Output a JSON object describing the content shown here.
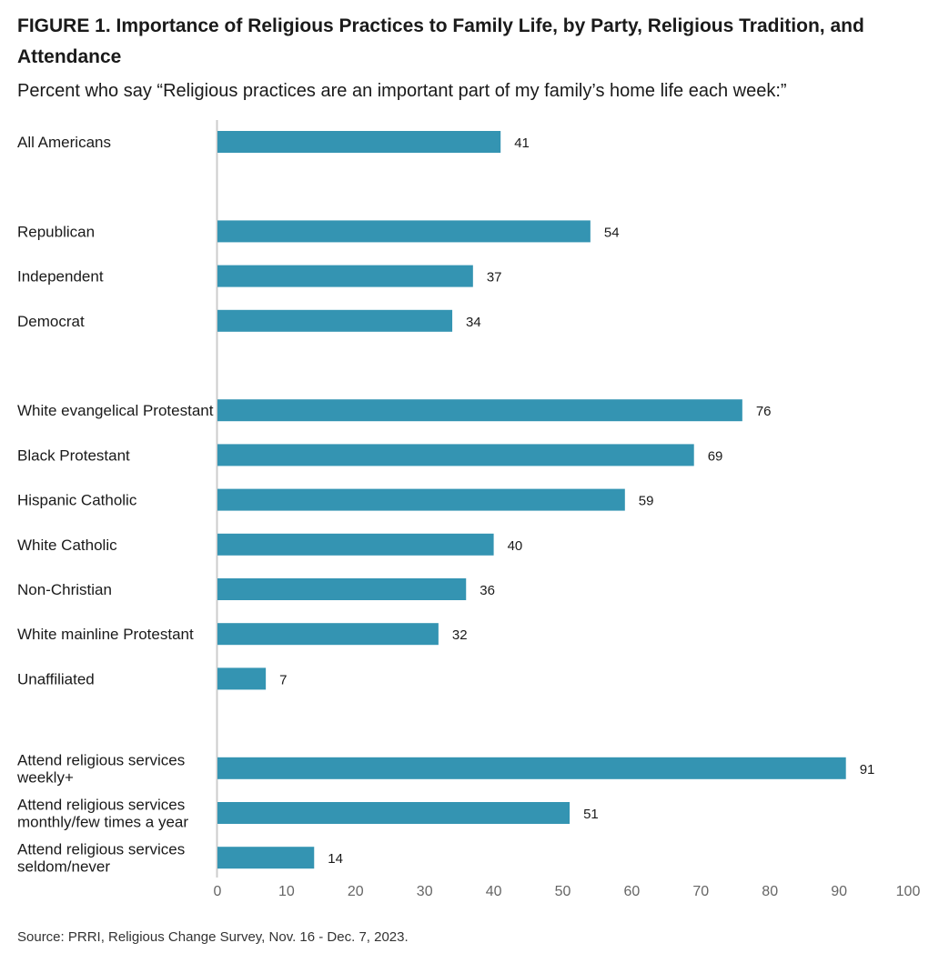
{
  "title": "FIGURE 1.  Importance of Religious Practices to Family Life, by Party, Religious Tradition, and Attendance",
  "subtitle": "Percent who say “Religious practices are an important part of my family’s home life each week:”",
  "source": "Source: PRRI, Religious Change Survey, Nov. 16 - Dec. 7, 2023.",
  "colors": {
    "bar": "#3494b2",
    "axis": "#cccccc",
    "tick_label": "#666666"
  },
  "chart_data": {
    "type": "bar",
    "orientation": "horizontal",
    "xlim": [
      0,
      100
    ],
    "xticks": [
      0,
      10,
      20,
      30,
      40,
      50,
      60,
      70,
      80,
      90,
      100
    ],
    "grid": false,
    "groups": [
      {
        "categories": [
          "All Americans"
        ],
        "values": [
          41
        ]
      },
      {
        "categories": [
          "Republican",
          "Independent",
          "Democrat"
        ],
        "values": [
          54,
          37,
          34
        ]
      },
      {
        "categories": [
          "White evangelical Protestant",
          "Black Protestant",
          "Hispanic Catholic",
          "White Catholic",
          "Non-Christian",
          "White mainline Protestant",
          "Unaffiliated"
        ],
        "values": [
          76,
          69,
          59,
          40,
          36,
          32,
          7
        ]
      },
      {
        "categories": [
          "Attend religious services weekly+",
          "Attend religious services monthly/few times a year",
          "Attend religious services seldom/never"
        ],
        "values": [
          91,
          51,
          14
        ]
      }
    ]
  }
}
